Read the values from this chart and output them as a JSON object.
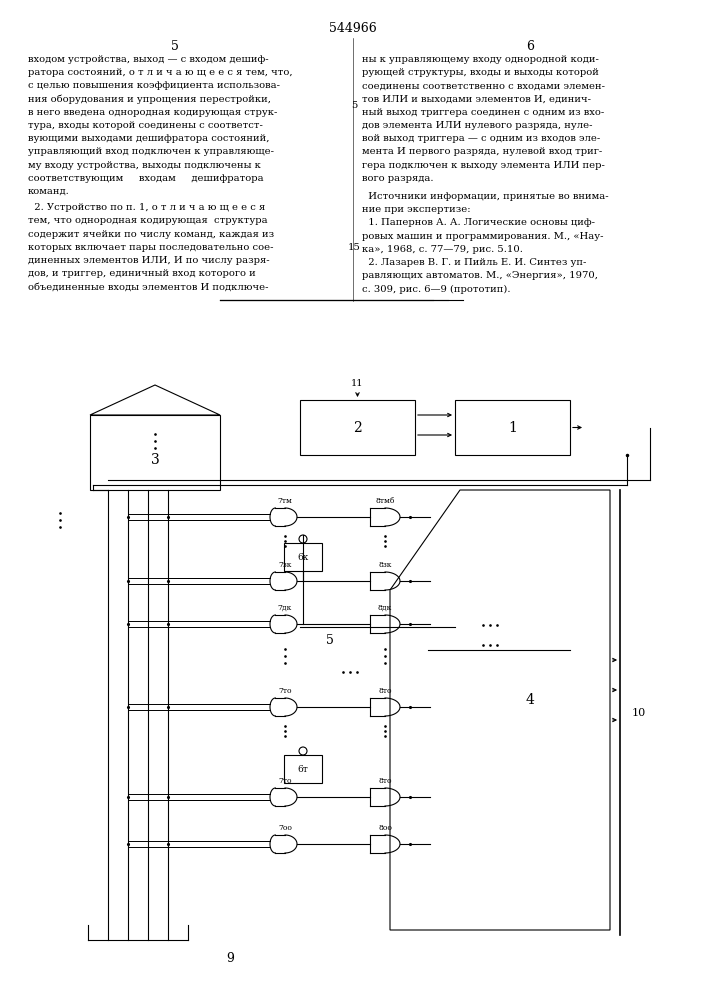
{
  "patent_number": "544966",
  "page_left": "5",
  "page_right": "6",
  "text_col1": [
    "входом устройства, выход — с входом дешиф-",
    "ратора состояний, о т л и ч а ю щ е е с я тем, что,",
    "с целью повышения коэффициента использова-",
    "ния оборудования и упрощения перестройки,",
    "в него введена однородная кодирующая струк-",
    "тура, входы которой соединены с соответст-",
    "вующими выходами дешифратора состояний,",
    "управляющий вход подключен к управляюще-",
    "му входу устройства, выходы подключены к",
    "соответствующим     входам     дешифратора",
    "команд."
  ],
  "text_col1_cont": [
    "  2. Устройство по п. 1, о т л и ч а ю щ е е с я",
    "тем, что однородная кодирующая  структура",
    "содержит ячейки по числу команд, каждая из",
    "которых включает пары последовательно сое-",
    "диненных элементов ИЛИ, И по числу разря-",
    "дов, и триггер, единичный вход которого и",
    "объединенные входы элементов И подключе-"
  ],
  "text_col2": [
    "ны к управляющему входу однородной коди-",
    "рующей структуры, входы и выходы которой",
    "соединены соответственно с входами элемен-",
    "тов ИЛИ и выходами элементов И, единич-",
    "ный выход триггера соединен с одним из вхо-",
    "дов элемента ИЛИ нулевого разряда, нуле-",
    "вой выход триггера — с одним из входов эле-",
    "мента И первого разряда, нулевой вход триг-",
    "гера подключен к выходу элемента ИЛИ пер-",
    "вого разряда."
  ],
  "text_col2_cont": [
    "  Источники информации, принятые во внима-",
    "ние при экспертизе:",
    "  1. Папернов А. А. Логические основы циф-",
    "ровых машин и программирования. М., «Нау-",
    "ка», 1968, с. 77—79, рис. 5.10.",
    "  2. Лазарев В. Г. и Пийль Е. И. Синтез уп-",
    "равляющих автоматов. М., «Энергия», 1970,",
    "с. 309, рис. 6—9 (прототип)."
  ],
  "bg_color": "#ffffff",
  "text_color": "#000000"
}
